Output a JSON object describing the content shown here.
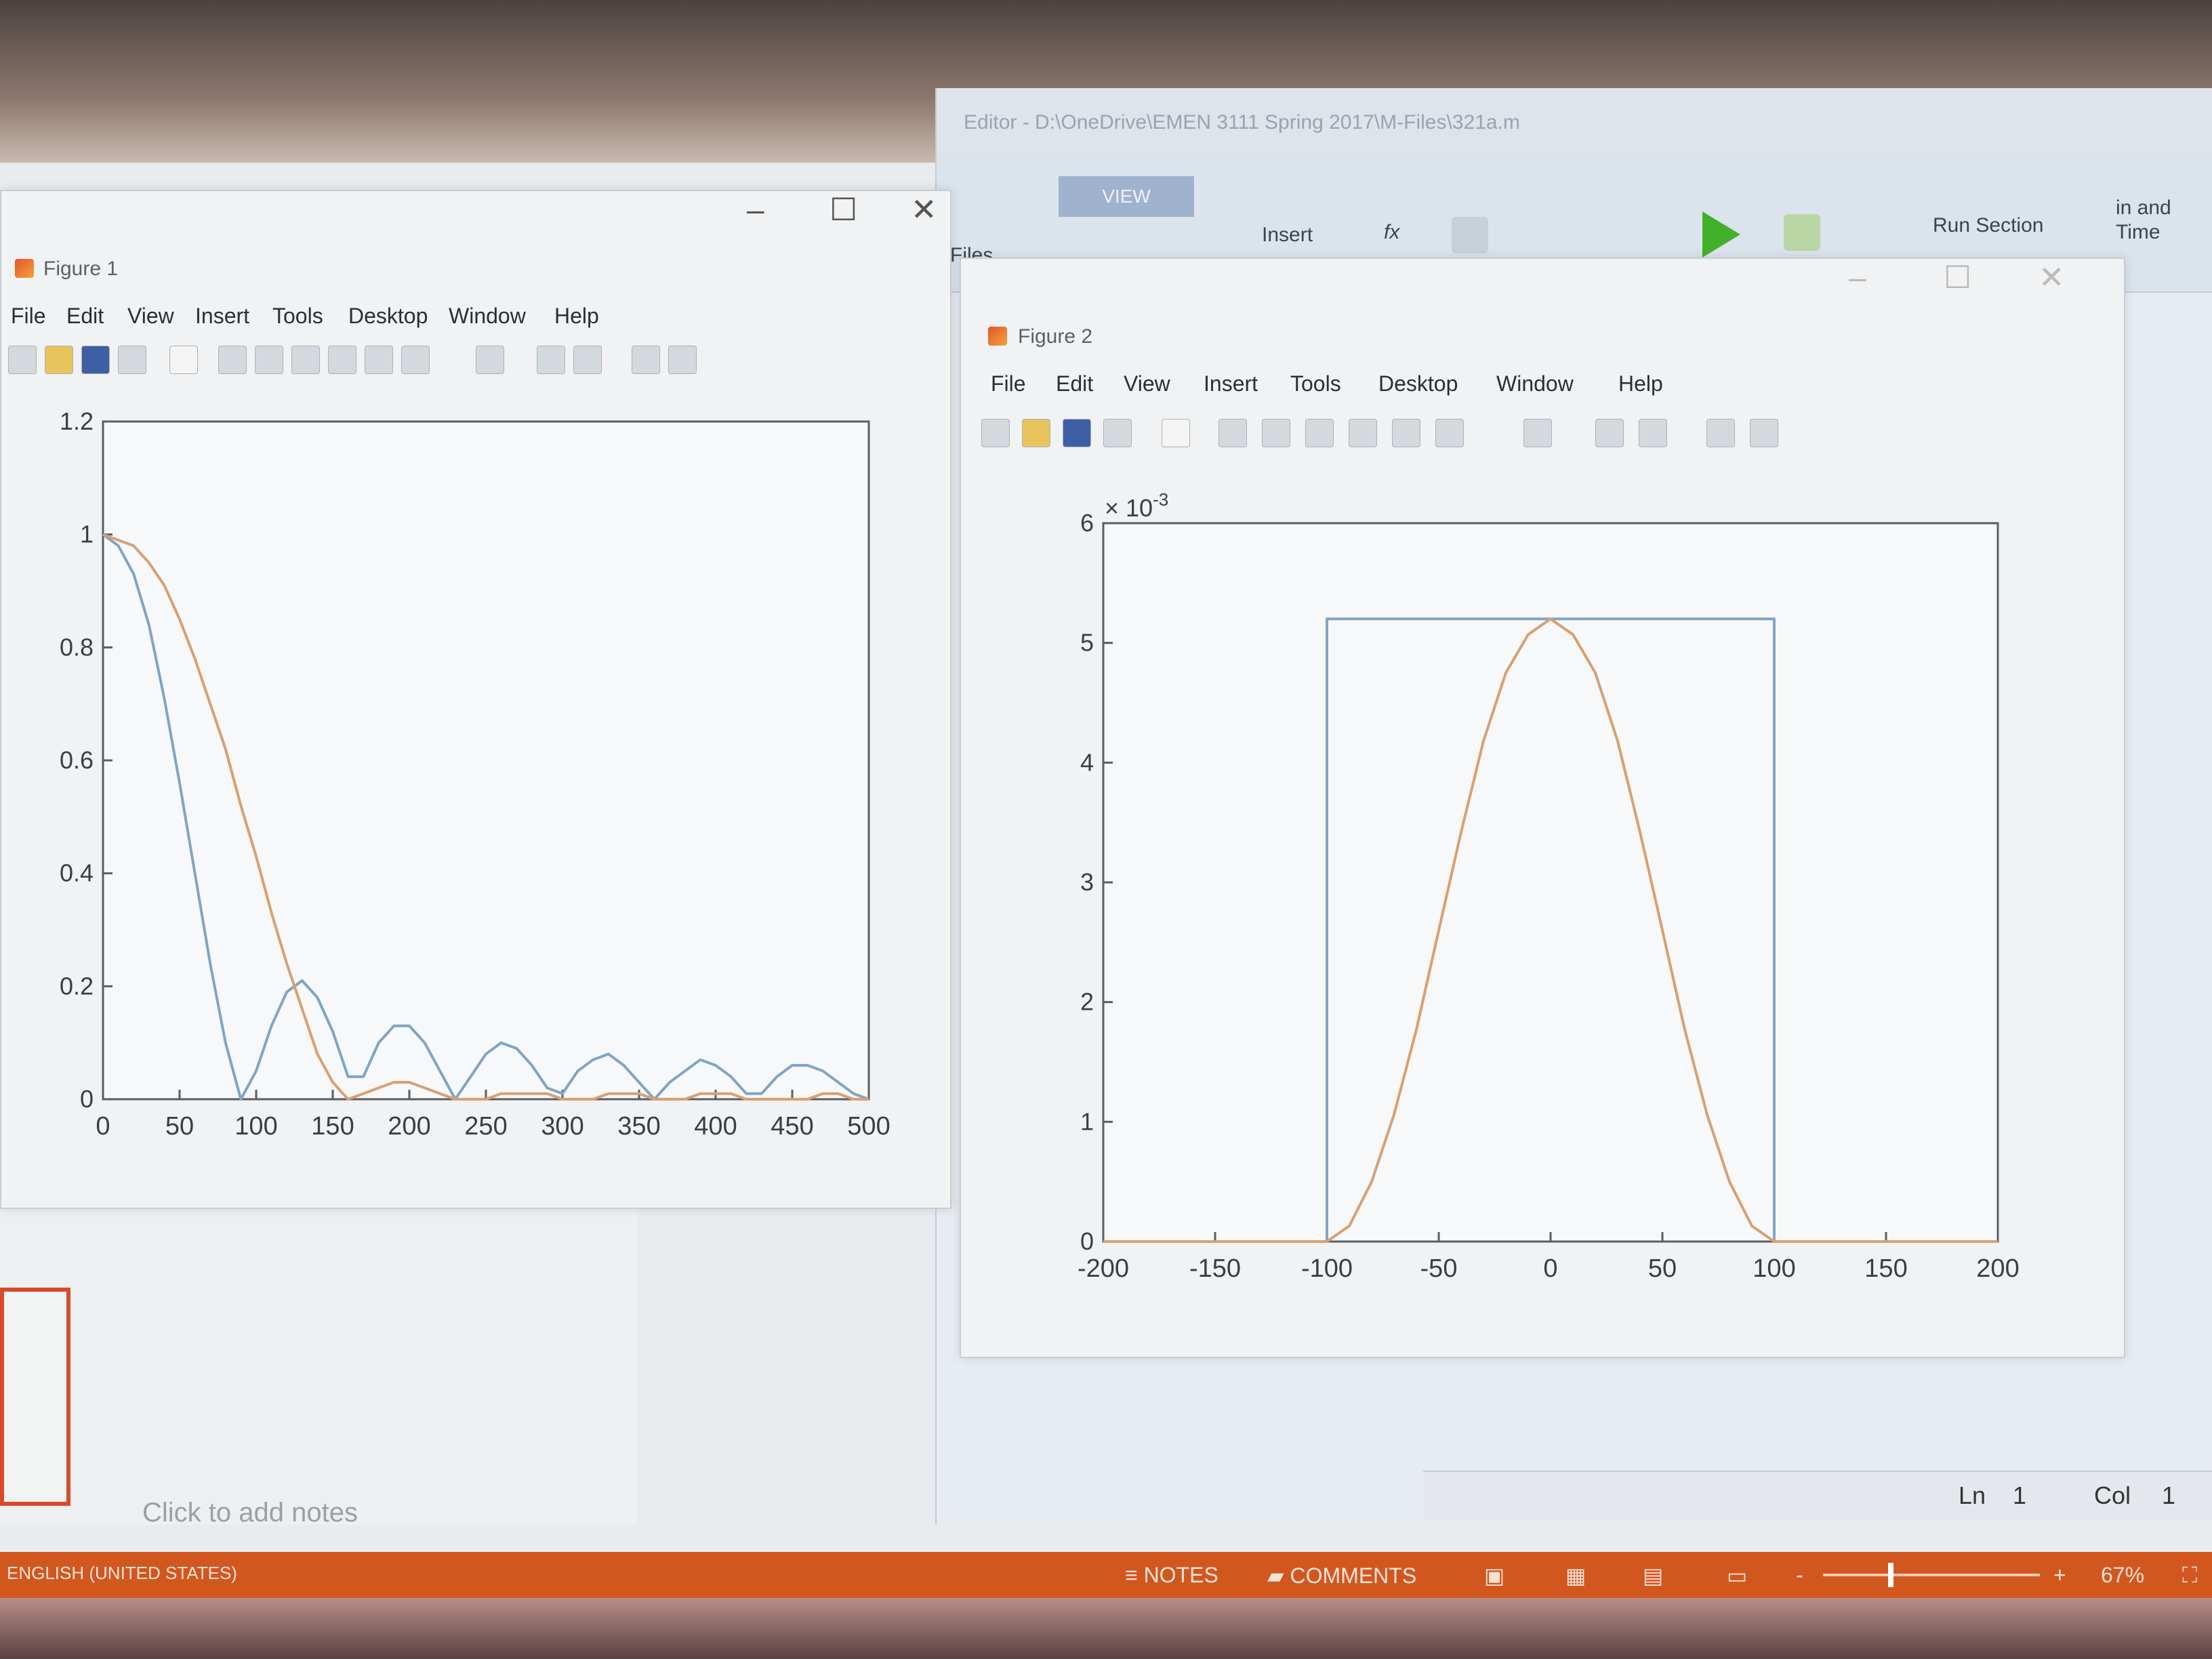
{
  "editor": {
    "title": "Editor - D:\\OneDrive\\EMEN 3111 Spring 2017\\M-Files\\321a.m",
    "ribbon_tab": "VIEW",
    "insert_label": "Insert",
    "fx_label": "fx",
    "run_section_label": "Run Section",
    "files_label": "Files",
    "time_label_1": "in and",
    "time_label_2": "Time",
    "status": {
      "ln_label": "Ln",
      "ln_value": "1",
      "col_label": "Col",
      "col_value": "1"
    }
  },
  "figure1": {
    "title": "Figure 1",
    "menu": [
      "File",
      "Edit",
      "View",
      "Insert",
      "Tools",
      "Desktop",
      "Window",
      "Help"
    ]
  },
  "figure2": {
    "title": "Figure 2",
    "menu": [
      "File",
      "Edit",
      "View",
      "Insert",
      "Tools",
      "Desktop",
      "Window",
      "Help"
    ]
  },
  "powerpoint": {
    "notes_placeholder": "Click to add notes",
    "language": "ENGLISH (UNITED STATES)",
    "notes_label": "NOTES",
    "comments_label": "COMMENTS",
    "zoom": "67%",
    "zoom_minus": "-",
    "zoom_plus": "+"
  },
  "colors": {
    "series_blue": "#7fa5c6",
    "series_orange": "#d9a071",
    "ppt_orange": "#d2571f",
    "thumb_border": "#d94a2a"
  },
  "chart_data": [
    {
      "type": "line",
      "xlim": [
        0,
        500
      ],
      "ylim": [
        0,
        1.2
      ],
      "xticks": [
        "0",
        "50",
        "100",
        "150",
        "200",
        "250",
        "300",
        "350",
        "400",
        "450",
        "500"
      ],
      "yticks": [
        "0",
        "0.2",
        "0.4",
        "0.6",
        "0.8",
        "1",
        "1.2"
      ],
      "series": [
        {
          "color": "#7fa5c6",
          "x": [
            0,
            10,
            20,
            30,
            40,
            50,
            60,
            70,
            80,
            90,
            100,
            110,
            120,
            130,
            140,
            150,
            160,
            170,
            180,
            190,
            200,
            210,
            220,
            230,
            240,
            250,
            260,
            270,
            280,
            290,
            300,
            310,
            320,
            330,
            340,
            350,
            360,
            370,
            380,
            390,
            400,
            410,
            420,
            430,
            440,
            450,
            460,
            470,
            480,
            490,
            500
          ],
          "y": [
            1.0,
            0.98,
            0.93,
            0.84,
            0.71,
            0.56,
            0.4,
            0.24,
            0.1,
            0.0,
            0.05,
            0.13,
            0.19,
            0.21,
            0.18,
            0.12,
            0.04,
            0.04,
            0.1,
            0.13,
            0.13,
            0.1,
            0.05,
            0.0,
            0.04,
            0.08,
            0.1,
            0.09,
            0.06,
            0.02,
            0.01,
            0.05,
            0.07,
            0.08,
            0.06,
            0.03,
            0.0,
            0.03,
            0.05,
            0.07,
            0.06,
            0.04,
            0.01,
            0.01,
            0.04,
            0.06,
            0.06,
            0.05,
            0.03,
            0.01,
            0.0
          ]
        },
        {
          "color": "#d9a071",
          "x": [
            0,
            10,
            20,
            30,
            40,
            50,
            60,
            70,
            80,
            90,
            100,
            110,
            120,
            130,
            140,
            150,
            160,
            170,
            180,
            190,
            200,
            210,
            220,
            230,
            240,
            250,
            260,
            270,
            280,
            290,
            300,
            310,
            320,
            330,
            340,
            350,
            360,
            370,
            380,
            390,
            400,
            410,
            420,
            430,
            440,
            450,
            460,
            470,
            480,
            490,
            500
          ],
          "y": [
            1.0,
            0.99,
            0.98,
            0.95,
            0.91,
            0.85,
            0.78,
            0.7,
            0.62,
            0.52,
            0.43,
            0.33,
            0.24,
            0.16,
            0.08,
            0.03,
            0.0,
            0.01,
            0.02,
            0.03,
            0.03,
            0.02,
            0.01,
            0.0,
            0.0,
            0.0,
            0.01,
            0.01,
            0.01,
            0.01,
            0.0,
            0.0,
            0.0,
            0.01,
            0.01,
            0.01,
            0.0,
            0.0,
            0.0,
            0.01,
            0.01,
            0.01,
            0.0,
            0.0,
            0.0,
            0.0,
            0.0,
            0.01,
            0.01,
            0.0,
            0.0
          ]
        }
      ]
    },
    {
      "type": "line",
      "xlim": [
        -200,
        200
      ],
      "ylim": [
        0,
        6
      ],
      "xticks": [
        "-200",
        "-150",
        "-100",
        "-50",
        "0",
        "50",
        "100",
        "150",
        "200"
      ],
      "yticks": [
        "0",
        "1",
        "2",
        "3",
        "4",
        "5",
        "6"
      ],
      "y_exponent_label": "× 10",
      "y_exponent_power": "-3",
      "series": [
        {
          "color": "#7fa5c6",
          "x": [
            -200,
            -100,
            -100,
            100,
            100,
            200
          ],
          "y": [
            0,
            0,
            5.2,
            5.2,
            0,
            0
          ]
        },
        {
          "color": "#d9a071",
          "x": [
            -200,
            -100,
            -90,
            -80,
            -70,
            -60,
            -50,
            -40,
            -30,
            -20,
            -10,
            0,
            10,
            20,
            30,
            40,
            50,
            60,
            70,
            80,
            90,
            100,
            200
          ],
          "y": [
            0,
            0,
            0.13,
            0.5,
            1.06,
            1.77,
            2.6,
            3.42,
            4.18,
            4.75,
            5.07,
            5.2,
            5.07,
            4.75,
            4.18,
            3.42,
            2.6,
            1.77,
            1.06,
            0.5,
            0.13,
            0,
            0
          ]
        }
      ]
    }
  ]
}
